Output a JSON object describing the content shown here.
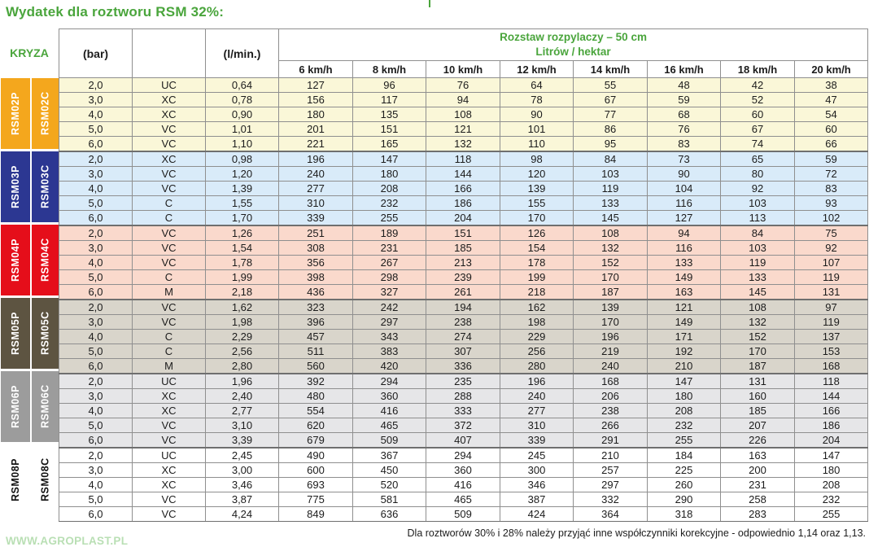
{
  "title": "Wydatek dla roztworu RSM 32%:",
  "header": {
    "kryza": "KRYZA",
    "pressure_unit": "(bar)",
    "flow_unit": "(l/min.)",
    "spacing_line1": "Rozstaw rozpylaczy – 50 cm",
    "spacing_line2": "Litrów / hektar",
    "speeds": [
      "6 km/h",
      "8 km/h",
      "10 km/h",
      "12 km/h",
      "14 km/h",
      "16 km/h",
      "18 km/h",
      "20 km/h"
    ]
  },
  "colors": {
    "title_green": "#4aa53c",
    "grid_line": "#8f8f8f",
    "group_separator": "#6f6f6f",
    "site_link_green": "#b9dfb4"
  },
  "groups": [
    {
      "label_p": "RSM02P",
      "label_c": "RSM02C",
      "label_bg": "#F4A71D",
      "label_fg": "#ffffff",
      "row_bg": "#FAF7D8",
      "rows": [
        {
          "bar": "2,0",
          "droplet": "UC",
          "flow": "0,64",
          "values": [
            127,
            96,
            76,
            64,
            55,
            48,
            42,
            38
          ]
        },
        {
          "bar": "3,0",
          "droplet": "XC",
          "flow": "0,78",
          "values": [
            156,
            117,
            94,
            78,
            67,
            59,
            52,
            47
          ]
        },
        {
          "bar": "4,0",
          "droplet": "XC",
          "flow": "0,90",
          "values": [
            180,
            135,
            108,
            90,
            77,
            68,
            60,
            54
          ]
        },
        {
          "bar": "5,0",
          "droplet": "VC",
          "flow": "1,01",
          "values": [
            201,
            151,
            121,
            101,
            86,
            76,
            67,
            60
          ]
        },
        {
          "bar": "6,0",
          "droplet": "VC",
          "flow": "1,10",
          "values": [
            221,
            165,
            132,
            110,
            95,
            83,
            74,
            66
          ]
        }
      ]
    },
    {
      "label_p": "RSM03P",
      "label_c": "RSM03C",
      "label_bg": "#2C3792",
      "label_fg": "#ffffff",
      "row_bg": "#D9EBF9",
      "rows": [
        {
          "bar": "2,0",
          "droplet": "XC",
          "flow": "0,98",
          "values": [
            196,
            147,
            118,
            98,
            84,
            73,
            65,
            59
          ]
        },
        {
          "bar": "3,0",
          "droplet": "VC",
          "flow": "1,20",
          "values": [
            240,
            180,
            144,
            120,
            103,
            90,
            80,
            72
          ]
        },
        {
          "bar": "4,0",
          "droplet": "VC",
          "flow": "1,39",
          "values": [
            277,
            208,
            166,
            139,
            119,
            104,
            92,
            83
          ]
        },
        {
          "bar": "5,0",
          "droplet": "C",
          "flow": "1,55",
          "values": [
            310,
            232,
            186,
            155,
            133,
            116,
            103,
            93
          ]
        },
        {
          "bar": "6,0",
          "droplet": "C",
          "flow": "1,70",
          "values": [
            339,
            255,
            204,
            170,
            145,
            127,
            113,
            102
          ]
        }
      ]
    },
    {
      "label_p": "RSM04P",
      "label_c": "RSM04C",
      "label_bg": "#E50E1A",
      "label_fg": "#ffffff",
      "row_bg": "#FAD9CC",
      "rows": [
        {
          "bar": "2,0",
          "droplet": "VC",
          "flow": "1,26",
          "values": [
            251,
            189,
            151,
            126,
            108,
            94,
            84,
            75
          ]
        },
        {
          "bar": "3,0",
          "droplet": "VC",
          "flow": "1,54",
          "values": [
            308,
            231,
            185,
            154,
            132,
            116,
            103,
            92
          ]
        },
        {
          "bar": "4,0",
          "droplet": "VC",
          "flow": "1,78",
          "values": [
            356,
            267,
            213,
            178,
            152,
            133,
            119,
            107
          ]
        },
        {
          "bar": "5,0",
          "droplet": "C",
          "flow": "1,99",
          "values": [
            398,
            298,
            239,
            199,
            170,
            149,
            133,
            119
          ]
        },
        {
          "bar": "6,0",
          "droplet": "M",
          "flow": "2,18",
          "values": [
            436,
            327,
            261,
            218,
            187,
            163,
            145,
            131
          ]
        }
      ]
    },
    {
      "label_p": "RSM05P",
      "label_c": "RSM05C",
      "label_bg": "#5D5441",
      "label_fg": "#ffffff",
      "row_bg": "#D9D5CB",
      "rows": [
        {
          "bar": "2,0",
          "droplet": "VC",
          "flow": "1,62",
          "values": [
            323,
            242,
            194,
            162,
            139,
            121,
            108,
            97
          ]
        },
        {
          "bar": "3,0",
          "droplet": "VC",
          "flow": "1,98",
          "values": [
            396,
            297,
            238,
            198,
            170,
            149,
            132,
            119
          ]
        },
        {
          "bar": "4,0",
          "droplet": "C",
          "flow": "2,29",
          "values": [
            457,
            343,
            274,
            229,
            196,
            171,
            152,
            137
          ]
        },
        {
          "bar": "5,0",
          "droplet": "C",
          "flow": "2,56",
          "values": [
            511,
            383,
            307,
            256,
            219,
            192,
            170,
            153
          ]
        },
        {
          "bar": "6,0",
          "droplet": "M",
          "flow": "2,80",
          "values": [
            560,
            420,
            336,
            280,
            240,
            210,
            187,
            168
          ]
        }
      ]
    },
    {
      "label_p": "RSM06P",
      "label_c": "RSM06C",
      "label_bg": "#9C9C9C",
      "label_fg": "#ffffff",
      "row_bg": "#E6E6E8",
      "rows": [
        {
          "bar": "2,0",
          "droplet": "UC",
          "flow": "1,96",
          "values": [
            392,
            294,
            235,
            196,
            168,
            147,
            131,
            118
          ]
        },
        {
          "bar": "3,0",
          "droplet": "XC",
          "flow": "2,40",
          "values": [
            480,
            360,
            288,
            240,
            206,
            180,
            160,
            144
          ]
        },
        {
          "bar": "4,0",
          "droplet": "XC",
          "flow": "2,77",
          "values": [
            554,
            416,
            333,
            277,
            238,
            208,
            185,
            166
          ]
        },
        {
          "bar": "5,0",
          "droplet": "VC",
          "flow": "3,10",
          "values": [
            620,
            465,
            372,
            310,
            266,
            232,
            207,
            186
          ]
        },
        {
          "bar": "6,0",
          "droplet": "VC",
          "flow": "3,39",
          "values": [
            679,
            509,
            407,
            339,
            291,
            255,
            226,
            204
          ]
        }
      ]
    },
    {
      "label_p": "RSM08P",
      "label_c": "RSM08C",
      "label_bg": "#FFFFFF",
      "label_fg": "#111111",
      "row_bg": "#FFFFFF",
      "rows": [
        {
          "bar": "2,0",
          "droplet": "UC",
          "flow": "2,45",
          "values": [
            490,
            367,
            294,
            245,
            210,
            184,
            163,
            147
          ]
        },
        {
          "bar": "3,0",
          "droplet": "XC",
          "flow": "3,00",
          "values": [
            600,
            450,
            360,
            300,
            257,
            225,
            200,
            180
          ]
        },
        {
          "bar": "4,0",
          "droplet": "XC",
          "flow": "3,46",
          "values": [
            693,
            520,
            416,
            346,
            297,
            260,
            231,
            208
          ]
        },
        {
          "bar": "5,0",
          "droplet": "VC",
          "flow": "3,87",
          "values": [
            775,
            581,
            465,
            387,
            332,
            290,
            258,
            232
          ]
        },
        {
          "bar": "6,0",
          "droplet": "VC",
          "flow": "4,24",
          "values": [
            849,
            636,
            509,
            424,
            364,
            318,
            283,
            255
          ]
        }
      ]
    }
  ],
  "footer": {
    "website": "WWW.AGROPLAST.PL",
    "note": "Dla roztworów 30% i 28% należy przyjąć inne współczynniki korekcyjne - odpowiednio 1,14 oraz 1,13."
  }
}
